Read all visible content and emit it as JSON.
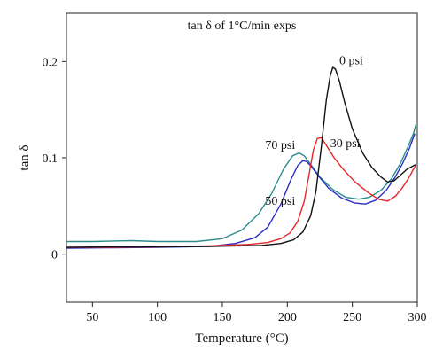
{
  "chart_data": {
    "type": "line",
    "title": "tan δ of 1°C/min exps",
    "xlabel": "Temperature (°C)",
    "ylabel": "tan δ",
    "xlim": [
      30,
      300
    ],
    "ylim": [
      -0.05,
      0.25
    ],
    "x_ticks": [
      50,
      100,
      150,
      200,
      250,
      300
    ],
    "y_ticks": [
      0,
      0.1,
      0.2
    ],
    "y_tick_labels": [
      "0",
      "0.1",
      "0.2"
    ],
    "grid": false,
    "series": [
      {
        "name": "0 psi",
        "color": "#111111",
        "x": [
          30,
          60,
          100,
          140,
          180,
          195,
          205,
          212,
          218,
          222,
          226,
          230,
          233,
          235,
          237,
          240,
          244,
          250,
          258,
          265,
          272,
          277,
          282,
          287,
          292,
          296,
          299
        ],
        "y": [
          0.007,
          0.0075,
          0.0075,
          0.008,
          0.009,
          0.011,
          0.015,
          0.023,
          0.04,
          0.065,
          0.11,
          0.16,
          0.185,
          0.194,
          0.192,
          0.18,
          0.158,
          0.13,
          0.105,
          0.09,
          0.08,
          0.075,
          0.076,
          0.082,
          0.088,
          0.091,
          0.093
        ]
      },
      {
        "name": "30 psi",
        "color": "#e8262a",
        "x": [
          30,
          60,
          100,
          140,
          170,
          185,
          195,
          202,
          208,
          213,
          217,
          220,
          223,
          226,
          230,
          236,
          243,
          252,
          262,
          270,
          277,
          283,
          288,
          293,
          297,
          299
        ],
        "y": [
          0.007,
          0.007,
          0.0075,
          0.0085,
          0.01,
          0.012,
          0.016,
          0.022,
          0.034,
          0.055,
          0.085,
          0.108,
          0.12,
          0.121,
          0.113,
          0.1,
          0.088,
          0.075,
          0.064,
          0.057,
          0.055,
          0.06,
          0.068,
          0.078,
          0.088,
          0.092
        ]
      },
      {
        "name": "50 psi",
        "color": "#2c2cc8",
        "x": [
          30,
          60,
          100,
          140,
          160,
          175,
          185,
          195,
          203,
          208,
          212,
          215,
          219,
          224,
          232,
          242,
          252,
          260,
          268,
          276,
          283,
          289,
          294,
          298
        ],
        "y": [
          0.006,
          0.0065,
          0.007,
          0.008,
          0.011,
          0.017,
          0.028,
          0.052,
          0.078,
          0.092,
          0.097,
          0.096,
          0.09,
          0.081,
          0.068,
          0.058,
          0.053,
          0.052,
          0.056,
          0.066,
          0.08,
          0.095,
          0.11,
          0.125
        ]
      },
      {
        "name": "70 psi",
        "color": "#2a8c8c",
        "x": [
          30,
          50,
          80,
          100,
          130,
          150,
          165,
          178,
          188,
          197,
          204,
          209,
          213,
          218,
          225,
          235,
          245,
          255,
          263,
          272,
          280,
          287,
          293,
          297,
          299
        ],
        "y": [
          0.013,
          0.013,
          0.014,
          0.013,
          0.013,
          0.016,
          0.025,
          0.042,
          0.063,
          0.088,
          0.102,
          0.105,
          0.102,
          0.093,
          0.08,
          0.067,
          0.059,
          0.057,
          0.059,
          0.066,
          0.078,
          0.094,
          0.112,
          0.125,
          0.135
        ]
      }
    ],
    "annotations": [
      {
        "text": "0 psi",
        "series": "0 psi"
      },
      {
        "text": "30 psi",
        "series": "30 psi"
      },
      {
        "text": "50 psi",
        "series": "50 psi"
      },
      {
        "text": "70 psi",
        "series": "70 psi"
      }
    ]
  }
}
